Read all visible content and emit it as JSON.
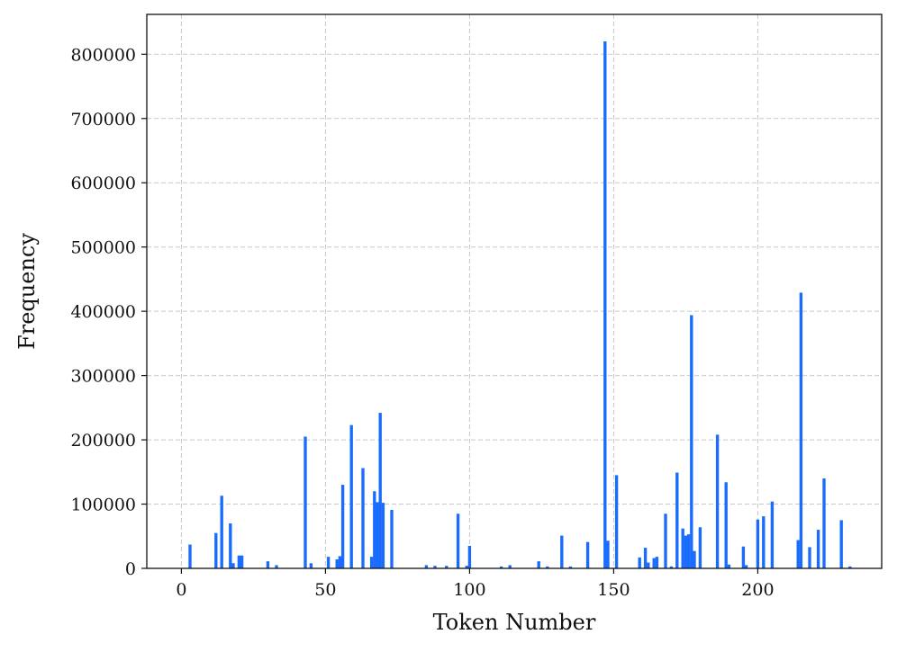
{
  "chart_data": {
    "type": "bar",
    "title": "",
    "xlabel": "Token Number",
    "ylabel": "Frequency",
    "xlim": [
      -12,
      243
    ],
    "ylim": [
      0,
      862000
    ],
    "xticks": [
      0,
      50,
      100,
      150,
      200
    ],
    "yticks": [
      0,
      100000,
      200000,
      300000,
      400000,
      500000,
      600000,
      700000,
      800000
    ],
    "grid": true,
    "bar_color": "#1a6cff",
    "x": [
      3,
      12,
      14,
      17,
      18,
      20,
      21,
      30,
      33,
      43,
      45,
      51,
      54,
      55,
      56,
      59,
      63,
      66,
      67,
      68,
      69,
      70,
      73,
      85,
      88,
      92,
      96,
      99,
      100,
      111,
      114,
      124,
      127,
      132,
      135,
      141,
      147,
      148,
      151,
      159,
      161,
      162,
      164,
      165,
      168,
      170,
      172,
      174,
      175,
      176,
      177,
      178,
      180,
      186,
      189,
      190,
      195,
      196,
      200,
      202,
      205,
      214,
      215,
      218,
      221,
      223,
      229,
      232
    ],
    "values": [
      37000,
      55000,
      113000,
      70000,
      8000,
      20000,
      20000,
      11000,
      5000,
      205000,
      8000,
      18000,
      14000,
      19000,
      130000,
      223000,
      156000,
      18000,
      120000,
      103000,
      242000,
      102000,
      91000,
      5000,
      4000,
      4000,
      85000,
      4000,
      35000,
      3000,
      5000,
      11000,
      3000,
      51000,
      3000,
      41000,
      820000,
      43000,
      145000,
      17000,
      32000,
      9000,
      16000,
      18000,
      85000,
      3000,
      149000,
      62000,
      51000,
      53000,
      394000,
      27000,
      64000,
      208000,
      134000,
      6000,
      34000,
      5000,
      76000,
      81000,
      104000,
      44000,
      429000,
      33000,
      60000,
      140000,
      75000,
      3000
    ]
  }
}
